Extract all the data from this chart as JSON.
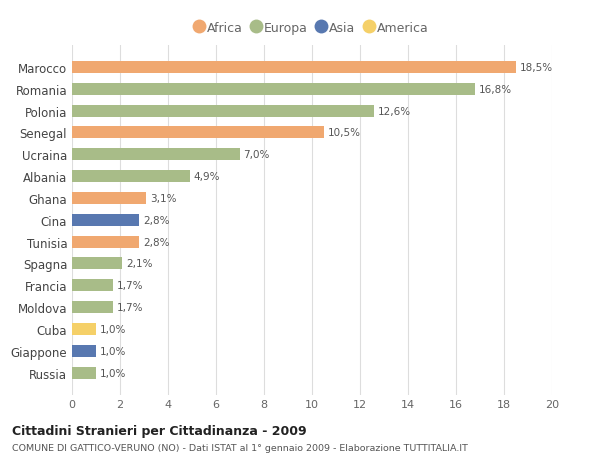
{
  "categories": [
    "Marocco",
    "Romania",
    "Polonia",
    "Senegal",
    "Ucraina",
    "Albania",
    "Ghana",
    "Cina",
    "Tunisia",
    "Spagna",
    "Francia",
    "Moldova",
    "Cuba",
    "Giappone",
    "Russia"
  ],
  "values": [
    18.5,
    16.8,
    12.6,
    10.5,
    7.0,
    4.9,
    3.1,
    2.8,
    2.8,
    2.1,
    1.7,
    1.7,
    1.0,
    1.0,
    1.0
  ],
  "labels": [
    "18,5%",
    "16,8%",
    "12,6%",
    "10,5%",
    "7,0%",
    "4,9%",
    "3,1%",
    "2,8%",
    "2,8%",
    "2,1%",
    "1,7%",
    "1,7%",
    "1,0%",
    "1,0%",
    "1,0%"
  ],
  "continents": [
    "Africa",
    "Europa",
    "Europa",
    "Africa",
    "Europa",
    "Europa",
    "Africa",
    "Asia",
    "Africa",
    "Europa",
    "Europa",
    "Europa",
    "America",
    "Asia",
    "Europa"
  ],
  "colors": {
    "Africa": "#F0A870",
    "Europa": "#A8BC88",
    "Asia": "#5878B0",
    "America": "#F5D068"
  },
  "legend_order": [
    "Africa",
    "Europa",
    "Asia",
    "America"
  ],
  "xlim": [
    0,
    20
  ],
  "xticks": [
    0,
    2,
    4,
    6,
    8,
    10,
    12,
    14,
    16,
    18,
    20
  ],
  "title": "Cittadini Stranieri per Cittadinanza - 2009",
  "subtitle": "COMUNE DI GATTICO-VERUNO (NO) - Dati ISTAT al 1° gennaio 2009 - Elaborazione TUTTITALIA.IT",
  "bg_color": "#ffffff",
  "grid_color": "#dddddd",
  "bar_height": 0.55
}
